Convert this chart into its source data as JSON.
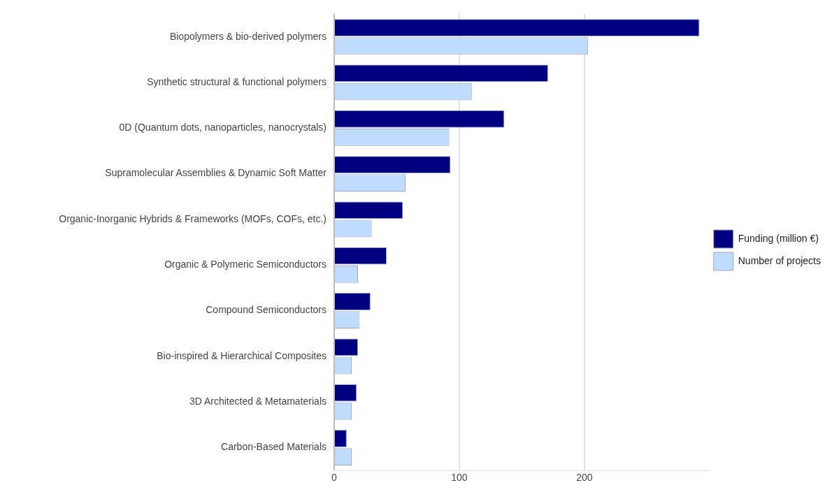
{
  "chart_data": {
    "type": "bar",
    "orientation": "horizontal",
    "categories": [
      "Biopolymers & bio-derived polymers",
      "Synthetic structural & functional polymers",
      "0D (Quantum dots, nanoparticles, nanocrystals)",
      "Supramolecular Assemblies & Dynamic Soft Matter",
      "Organic-Inorganic Hybrids & Frameworks (MOFs, COFs, etc.)",
      "Organic & Polymeric Semiconductors",
      "Compound Semiconductors",
      "Bio-inspired & Hierarchical Composites",
      "3D Architected & Metamaterials",
      "Carbon-Based Materials"
    ],
    "series": [
      {
        "name": "Funding (million €)",
        "color": "#000080",
        "values": [
          292,
          171,
          136,
          93,
          55,
          42,
          29,
          19,
          18,
          10
        ]
      },
      {
        "name": "Number of projects",
        "color": "#bfdbfe",
        "values": [
          203,
          110,
          92,
          57,
          30,
          19,
          20,
          14,
          14,
          14
        ]
      }
    ],
    "xlim": [
      0,
      300
    ],
    "xticks": [
      0,
      100,
      200
    ],
    "grid": "x",
    "legend": "right"
  }
}
